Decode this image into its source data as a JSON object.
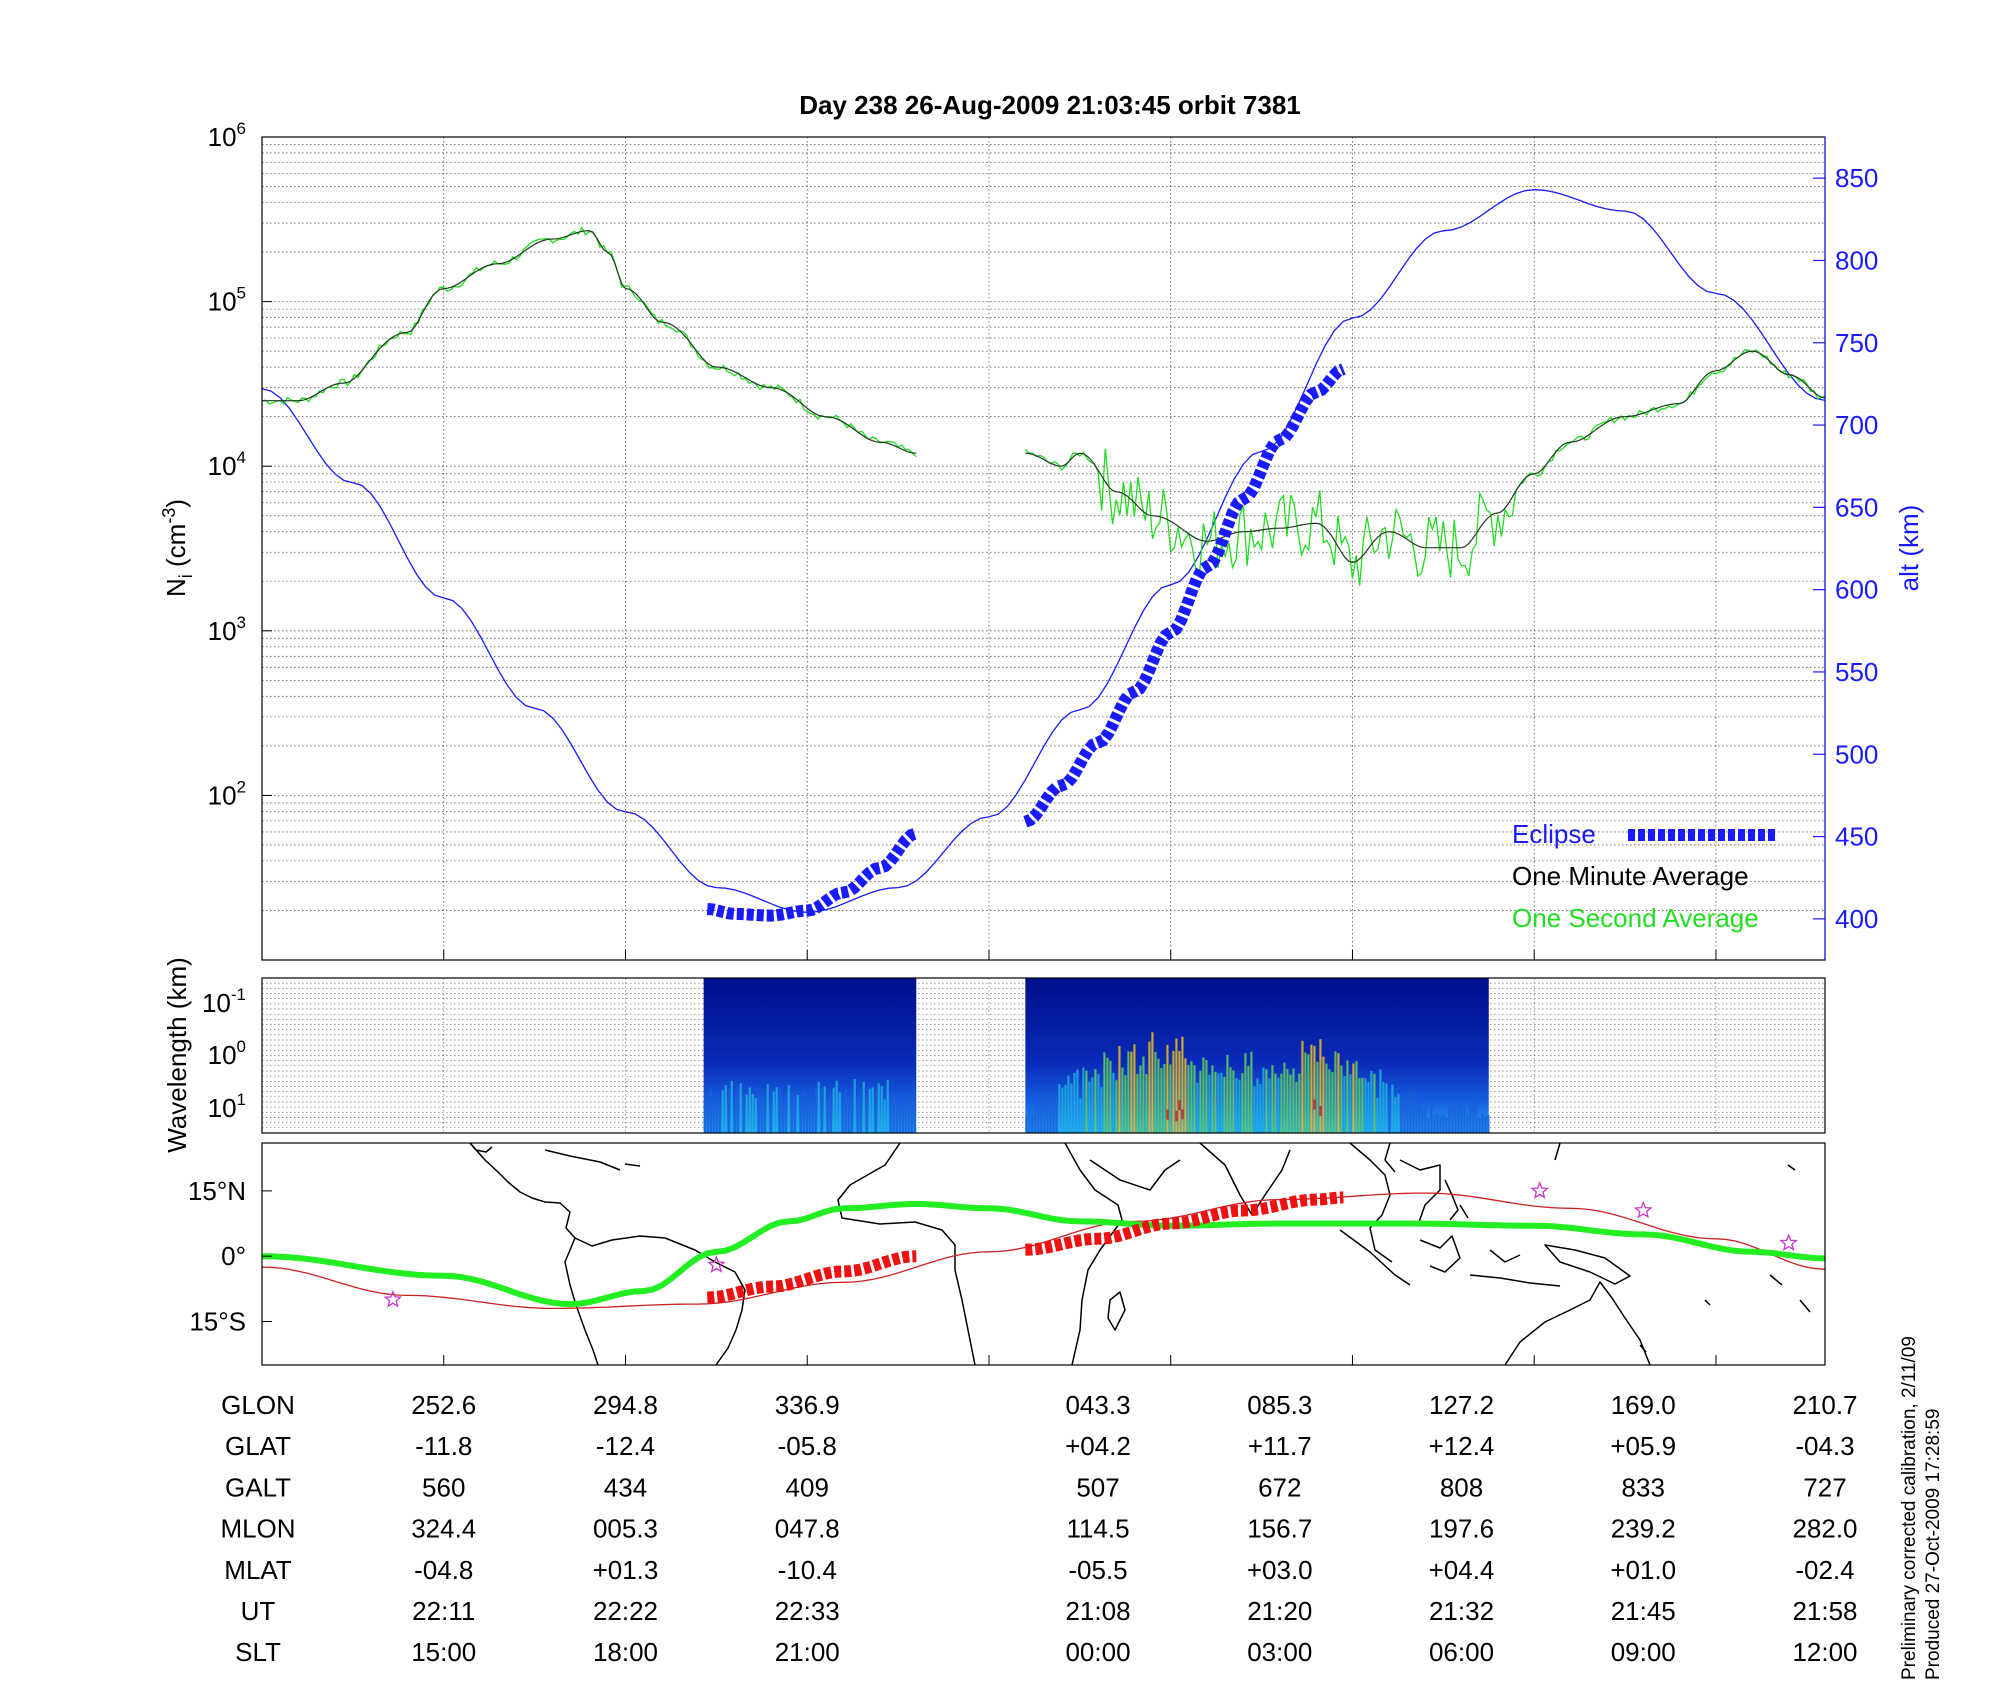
{
  "title": "Day 238  26-Aug-2009 21:03:45   orbit 7381",
  "side_note": [
    "Preliminary corrected calibration, 2/11/09",
    "Produced 27-Oct-2009 17:28:59"
  ],
  "chart_data": [
    {
      "id": "density",
      "type": "line",
      "xlabel": "",
      "ylabel": "Ni (cm-3)",
      "ylabel_base": "N",
      "ylabel_sub": "i",
      "ylabel_unit": "(cm",
      "ylabel_sup": "-3",
      "y_scale": "log",
      "ylim": [
        10,
        1000000
      ],
      "yticks": [
        {
          "base": "10",
          "exp": "6",
          "value": 1000000
        },
        {
          "base": "10",
          "exp": "5",
          "value": 100000
        },
        {
          "base": "10",
          "exp": "4",
          "value": 10000
        },
        {
          "base": "10",
          "exp": "3",
          "value": 1000
        },
        {
          "base": "10",
          "exp": "2",
          "value": 100
        }
      ],
      "y2label": "alt (km)",
      "y2lim": [
        375,
        875
      ],
      "y2ticks": [
        400,
        450,
        500,
        550,
        600,
        650,
        700,
        750,
        800,
        850
      ],
      "xlim": [
        0,
        8.6
      ],
      "grid": true,
      "legend_position": "bottom-right",
      "legend": [
        {
          "label": "Eclipse",
          "color": "#1a1aff"
        },
        {
          "label": "One Minute Average",
          "color": "#000000"
        },
        {
          "label": "One Second Average",
          "color": "#22dd22"
        }
      ],
      "altitude_series": {
        "name": "alt (km)",
        "color": "#1a1aff",
        "x": [
          0,
          0.5,
          1,
          1.5,
          2,
          2.5,
          3,
          3.5,
          4,
          4.5,
          5,
          5.5,
          6,
          6.5,
          7,
          7.5,
          8,
          8.6
        ],
        "y": [
          722,
          665,
          595,
          528,
          465,
          419,
          404,
          419,
          462,
          527,
          603,
          684,
          765,
          818,
          843,
          830,
          780,
          715
        ]
      },
      "eclipse_segments": [
        {
          "x": [
            2.45,
            2.6,
            2.8,
            3.0,
            3.2,
            3.4,
            3.6
          ],
          "y": [
            406,
            403,
            402,
            405,
            416,
            431,
            452
          ]
        },
        {
          "x": [
            4.2,
            4.4,
            4.6,
            4.8,
            5.0,
            5.2,
            5.4,
            5.6,
            5.8,
            5.95
          ],
          "y": [
            459,
            481,
            507,
            538,
            574,
            614,
            655,
            691,
            720,
            734
          ]
        }
      ],
      "density_segments": [
        {
          "x": [
            0,
            0.2,
            0.45,
            0.8,
            1.0,
            1.3,
            1.6,
            1.8,
            1.9,
            2.0,
            2.2,
            2.5,
            2.8,
            3.1,
            3.4,
            3.6
          ],
          "y": [
            25000,
            25000,
            32000,
            65000,
            120000,
            170000,
            240000,
            270000,
            200000,
            120000,
            75000,
            40000,
            30000,
            20000,
            14000,
            12000
          ]
        },
        {
          "x": [
            4.2,
            4.4,
            4.5,
            4.7,
            4.9,
            5.2,
            5.4,
            5.6,
            5.8,
            6.0,
            6.2,
            6.4,
            6.6,
            6.8,
            7.0,
            7.2,
            7.5,
            7.8,
            8.0,
            8.2,
            8.4,
            8.6
          ],
          "y": [
            12000,
            10000,
            12000,
            7000,
            5000,
            3500,
            4000,
            4200,
            4500,
            2600,
            4000,
            3200,
            3200,
            5200,
            9000,
            14000,
            20000,
            24000,
            38000,
            50000,
            36000,
            26000
          ]
        }
      ]
    },
    {
      "id": "spectrogram",
      "type": "heatmap",
      "ylabel": "Wavelength (km)",
      "y_scale": "log",
      "yticks": [
        {
          "base": "10",
          "exp": "-1"
        },
        {
          "base": "10",
          "exp": "0"
        },
        {
          "base": "10",
          "exp": "1"
        }
      ],
      "active_ranges_x": [
        [
          2.43,
          3.6
        ],
        [
          4.2,
          6.75
        ]
      ]
    },
    {
      "id": "map",
      "type": "line",
      "ylabel": "",
      "yticks": [
        "15°N",
        "0°",
        "15°S"
      ],
      "lat_values": [
        15,
        0,
        -15
      ],
      "ylim": [
        -25,
        26
      ],
      "ground_track": {
        "color": "#22ee22",
        "x": [
          0,
          1,
          1.7,
          2.1,
          2.5,
          2.9,
          3.2,
          3.6,
          4.0,
          4.5,
          5.0,
          5.6,
          6.3,
          7.0,
          7.6,
          8.2,
          8.6
        ],
        "lat": [
          0,
          -4.5,
          -11,
          -8,
          1,
          8,
          11,
          12,
          11,
          8,
          7,
          7.5,
          7.5,
          7,
          5,
          1,
          -0.5
        ]
      },
      "magnetic_track": {
        "color": "#cc2222",
        "x": [
          0,
          0.8,
          1.6,
          2.4,
          3.2,
          4.0,
          4.8,
          5.6,
          6.4,
          7.2,
          8.0,
          8.6
        ],
        "lat": [
          -2.5,
          -9,
          -12,
          -11,
          -6,
          1,
          8,
          13,
          14.5,
          11,
          4,
          -3
        ]
      },
      "eclipse_segments": [
        {
          "color": "#ee1111",
          "x": [
            2.45,
            2.8,
            3.2,
            3.6
          ],
          "lat": [
            -9.5,
            -7,
            -3.5,
            0
          ]
        },
        {
          "color": "#ee1111",
          "x": [
            4.2,
            4.6,
            5.0,
            5.4,
            5.8,
            5.95
          ],
          "lat": [
            1.5,
            4,
            7.5,
            10.5,
            13,
            13.5
          ]
        }
      ],
      "stars": [
        {
          "x": 0.72,
          "lat": -10
        },
        {
          "x": 2.5,
          "lat": -2
        },
        {
          "x": 7.03,
          "lat": 15
        },
        {
          "x": 7.6,
          "lat": 10.5
        },
        {
          "x": 8.4,
          "lat": 3
        }
      ]
    }
  ],
  "table": {
    "rows": [
      {
        "label": "GLON",
        "values": [
          "252.6",
          "294.8",
          "336.9",
          "043.3",
          "085.3",
          "127.2",
          "169.0",
          "210.7"
        ]
      },
      {
        "label": "GLAT",
        "values": [
          "-11.8",
          "-12.4",
          "-05.8",
          "+04.2",
          "+11.7",
          "+12.4",
          "+05.9",
          "-04.3"
        ]
      },
      {
        "label": "GALT",
        "values": [
          "560",
          "434",
          "409",
          "507",
          "672",
          "808",
          "833",
          "727"
        ]
      },
      {
        "label": "MLON",
        "values": [
          "324.4",
          "005.3",
          "047.8",
          "114.5",
          "156.7",
          "197.6",
          "239.2",
          "282.0"
        ]
      },
      {
        "label": "MLAT",
        "values": [
          "-04.8",
          "+01.3",
          "-10.4",
          "-05.5",
          "+03.0",
          "+04.4",
          "+01.0",
          "-02.4"
        ]
      },
      {
        "label": "UT",
        "values": [
          "22:11",
          "22:22",
          "22:33",
          "21:08",
          "21:20",
          "21:32",
          "21:45",
          "21:58"
        ]
      },
      {
        "label": "SLT",
        "values": [
          "15:00",
          "18:00",
          "21:00",
          "00:00",
          "03:00",
          "06:00",
          "09:00",
          "12:00"
        ]
      }
    ],
    "column_x": [
      1,
      2,
      3,
      4.6,
      5.6,
      6.6,
      7.6,
      8.6
    ]
  }
}
